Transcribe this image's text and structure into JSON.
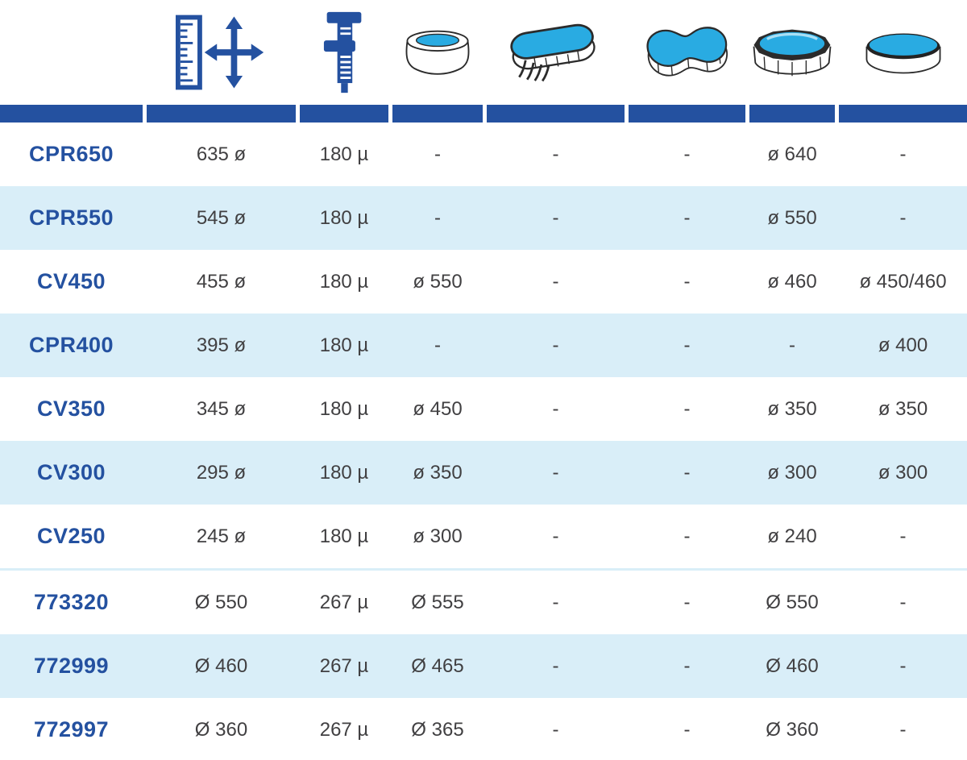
{
  "table": {
    "columns": [
      {
        "id": "model",
        "icon": "none",
        "label": ""
      },
      {
        "id": "dimensions",
        "icon": "ruler-dimensions-icon",
        "label": ""
      },
      {
        "id": "thickness",
        "icon": "caliper-icon",
        "label": ""
      },
      {
        "id": "inflatable-ring-pool",
        "icon": "pool-inflatable-icon",
        "label": ""
      },
      {
        "id": "oval-pool",
        "icon": "pool-oval-icon",
        "label": ""
      },
      {
        "id": "figure8-pool",
        "icon": "pool-figure8-icon",
        "label": ""
      },
      {
        "id": "round-frame-pool",
        "icon": "pool-round-frame-icon",
        "label": ""
      },
      {
        "id": "round-pool",
        "icon": "pool-round-icon",
        "label": ""
      }
    ],
    "rows": [
      {
        "model": "CPR650",
        "shaded": false,
        "cells": [
          "635 ø",
          "180 µ",
          "-",
          "-",
          "-",
          "ø 640",
          "-"
        ]
      },
      {
        "model": "CPR550",
        "shaded": true,
        "cells": [
          "545 ø",
          "180 µ",
          "-",
          "-",
          "-",
          "ø 550",
          "-"
        ]
      },
      {
        "model": "CV450",
        "shaded": false,
        "cells": [
          "455 ø",
          "180 µ",
          "ø 550",
          "-",
          "-",
          "ø 460",
          "ø 450/460"
        ]
      },
      {
        "model": "CPR400",
        "shaded": true,
        "cells": [
          "395 ø",
          "180 µ",
          "-",
          "-",
          "-",
          "-",
          "ø 400"
        ]
      },
      {
        "model": "CV350",
        "shaded": false,
        "cells": [
          "345 ø",
          "180 µ",
          "ø 450",
          "-",
          "-",
          "ø 350",
          "ø 350"
        ]
      },
      {
        "model": "CV300",
        "shaded": true,
        "cells": [
          "295 ø",
          "180 µ",
          "ø 350",
          "-",
          "-",
          "ø 300",
          "ø 300"
        ]
      },
      {
        "model": "CV250",
        "shaded": false,
        "cells": [
          "245 ø",
          "180 µ",
          "ø 300",
          "-",
          "-",
          "ø 240",
          "-"
        ]
      },
      {
        "model": "773320",
        "shaded": false,
        "cells": [
          "Ø 550",
          "267 µ",
          "Ø 555",
          "-",
          "-",
          "Ø 550",
          "-"
        ]
      },
      {
        "model": "772999",
        "shaded": true,
        "cells": [
          "Ø 460",
          "267 µ",
          "Ø 465",
          "-",
          "-",
          "Ø 460",
          "-"
        ]
      },
      {
        "model": "772997",
        "shaded": false,
        "cells": [
          "Ø 360",
          "267 µ",
          "Ø 365",
          "-",
          "-",
          "Ø 360",
          "-"
        ]
      }
    ],
    "divider_after_index": 6
  },
  "colors": {
    "accent_blue": "#2451a0",
    "water_blue": "#29abe2",
    "row_band_blue": "#d9eef8",
    "text_color": "#414042",
    "outline_dark": "#2b2b2b"
  }
}
